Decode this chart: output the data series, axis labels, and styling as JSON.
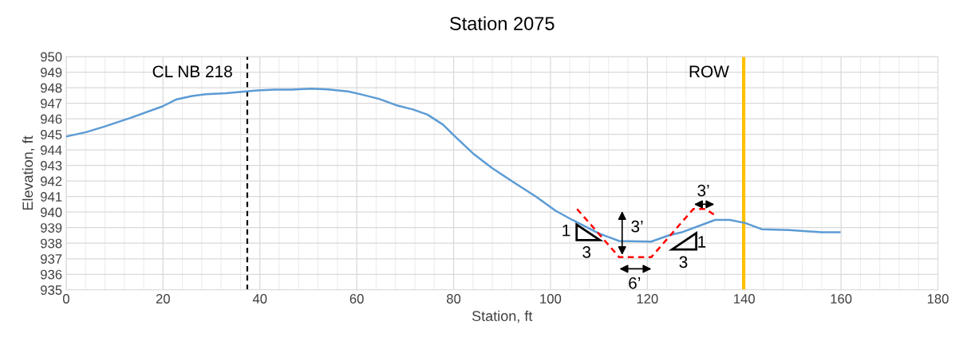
{
  "chart_data": {
    "type": "line",
    "title": "Station 2075",
    "xlabel": "Station, ft",
    "ylabel": "Elevation, ft",
    "xlim": [
      0,
      180
    ],
    "xticks": [
      0,
      20,
      40,
      60,
      80,
      100,
      120,
      140,
      160,
      180
    ],
    "ylim": [
      935,
      950
    ],
    "yticks": [
      935,
      936,
      937,
      938,
      939,
      940,
      941,
      942,
      943,
      944,
      945,
      946,
      947,
      948,
      949,
      950
    ],
    "grid": true,
    "legend": false,
    "marker": "none",
    "series": [
      {
        "color": "#5b9bd5",
        "line_style": "solid",
        "x": [
          0,
          4.1,
          7.9,
          13.2,
          19.9,
          22.8,
          26,
          28.9,
          33,
          37.1,
          39.5,
          43,
          46.5,
          50.6,
          54.1,
          58.2,
          60.5,
          64.6,
          68.1,
          71.6,
          74.6,
          77.8,
          80.4,
          84.2,
          87.9,
          92,
          97,
          101,
          104.5,
          110.2,
          114.2,
          120.8,
          124.4,
          127.1,
          134,
          137,
          140.2,
          143.6,
          149.3,
          156,
          159.7
        ],
        "values": [
          944.86,
          945.14,
          945.5,
          946.05,
          946.8,
          947.25,
          947.47,
          947.58,
          947.65,
          947.76,
          947.83,
          947.87,
          947.87,
          947.94,
          947.89,
          947.76,
          947.6,
          947.28,
          946.88,
          946.6,
          946.27,
          945.63,
          944.83,
          943.72,
          942.84,
          942.0,
          941.0,
          940.1,
          939.5,
          938.6,
          938.14,
          938.1,
          938.5,
          938.7,
          939.5,
          939.5,
          939.3,
          938.9,
          938.85,
          938.7,
          938.7
        ]
      },
      {
        "color": "#ff0000",
        "line_style": "dashed",
        "x": [
          105.5,
          114.2,
          120.8,
          129.5,
          132,
          134.2
        ],
        "values": [
          940.2,
          937.1,
          937.1,
          940.2,
          940.2,
          939.75
        ]
      }
    ],
    "ref_lines": [
      {
        "axis": "x",
        "value": 37.4,
        "label": "CL NB 218",
        "color": "#000000",
        "line_style": "dashed"
      },
      {
        "axis": "x",
        "value": 139.9,
        "label": "ROW",
        "color": "#ffc000",
        "line_style": "solid"
      }
    ],
    "annotations": [
      "1",
      "3",
      "3’",
      "6’",
      "1",
      "3",
      "3’"
    ]
  }
}
